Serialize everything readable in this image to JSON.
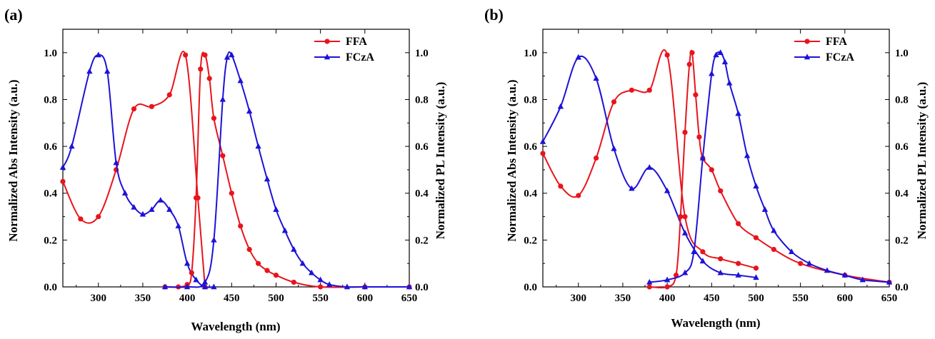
{
  "chart_data": [
    {
      "type": "line",
      "panel_label": "(a)",
      "xlabel": "Wavelength (nm)",
      "ylabel_left": "Normalized Abs Intensity (a.u.)",
      "ylabel_right": "Normalized PL Intensity (a.u.)",
      "xlim": [
        260,
        650
      ],
      "ylim": [
        0,
        1.1
      ],
      "xticks": [
        "300",
        "350",
        "400",
        "450",
        "500",
        "550",
        "600",
        "650"
      ],
      "yticks": [
        "0.0",
        "0.2",
        "0.4",
        "0.6",
        "0.8",
        "1.0"
      ],
      "legend": "top-right",
      "series": [
        {
          "name": "FFA",
          "color": "#e8141c",
          "marker": "circle",
          "axis": "left",
          "x": [
            260,
            280,
            300,
            320,
            340,
            360,
            380,
            398,
            412,
            420
          ],
          "y": [
            0.45,
            0.29,
            0.3,
            0.5,
            0.76,
            0.77,
            0.82,
            0.99,
            0.38,
            0.0
          ]
        },
        {
          "name": "FCzA",
          "color": "#1d12d8",
          "marker": "triangle",
          "axis": "left",
          "x": [
            260,
            270,
            290,
            300,
            310,
            320,
            330,
            340,
            350,
            360,
            370,
            380,
            390,
            400,
            410,
            420,
            430
          ],
          "y": [
            0.51,
            0.6,
            0.92,
            0.99,
            0.92,
            0.53,
            0.4,
            0.34,
            0.31,
            0.33,
            0.37,
            0.33,
            0.26,
            0.1,
            0.03,
            0.0,
            0.0
          ]
        },
        {
          "name": "FFA",
          "color": "#e8141c",
          "marker": "circle",
          "axis": "right",
          "x": [
            375,
            390,
            400,
            405,
            410,
            415,
            420,
            425,
            430,
            440,
            450,
            460,
            470,
            480,
            490,
            500,
            520,
            550,
            600,
            650
          ],
          "y": [
            0.0,
            0.0,
            0.01,
            0.06,
            0.38,
            0.93,
            0.99,
            0.89,
            0.72,
            0.56,
            0.4,
            0.26,
            0.16,
            0.1,
            0.07,
            0.05,
            0.02,
            0.0,
            0.0,
            0.0
          ]
        },
        {
          "name": "FCzA",
          "color": "#1d12d8",
          "marker": "triangle",
          "axis": "right",
          "x": [
            375,
            400,
            420,
            430,
            440,
            445,
            450,
            460,
            470,
            480,
            490,
            500,
            510,
            520,
            530,
            540,
            550,
            560,
            580,
            600,
            650
          ],
          "y": [
            0.0,
            0.0,
            0.02,
            0.2,
            0.8,
            0.98,
            0.99,
            0.88,
            0.75,
            0.6,
            0.46,
            0.33,
            0.24,
            0.16,
            0.1,
            0.06,
            0.03,
            0.01,
            0.0,
            0.0,
            0.0
          ]
        }
      ]
    },
    {
      "type": "line",
      "panel_label": "(b)",
      "xlabel": "Wavelength (nm)",
      "ylabel_left": "Normalized Abs Intensity (a.u.)",
      "ylabel_right": "Normalized PL Intensity (a.u.)",
      "xlim": [
        260,
        650
      ],
      "ylim": [
        0,
        1.1
      ],
      "xticks": [
        "300",
        "350",
        "400",
        "450",
        "500",
        "550",
        "600",
        "650"
      ],
      "yticks": [
        "0.0",
        "0.2",
        "0.4",
        "0.6",
        "0.8",
        "1.0"
      ],
      "legend": "top-right",
      "series": [
        {
          "name": "FFA",
          "color": "#e8141c",
          "marker": "circle",
          "axis": "left",
          "x": [
            260,
            280,
            300,
            320,
            340,
            360,
            380,
            400,
            420,
            440,
            460,
            480,
            500
          ],
          "y": [
            0.57,
            0.43,
            0.39,
            0.55,
            0.79,
            0.84,
            0.84,
            0.99,
            0.3,
            0.15,
            0.12,
            0.1,
            0.08
          ]
        },
        {
          "name": "FCzA",
          "color": "#1d12d8",
          "marker": "triangle",
          "axis": "left",
          "x": [
            260,
            280,
            300,
            320,
            340,
            360,
            380,
            400,
            420,
            440,
            460,
            480,
            500
          ],
          "y": [
            0.62,
            0.77,
            0.98,
            0.89,
            0.59,
            0.42,
            0.51,
            0.41,
            0.23,
            0.11,
            0.06,
            0.05,
            0.04
          ]
        },
        {
          "name": "FFA",
          "color": "#e8141c",
          "marker": "circle",
          "axis": "right",
          "x": [
            380,
            400,
            410,
            415,
            420,
            425,
            428,
            432,
            436,
            440,
            450,
            460,
            480,
            500,
            520,
            550,
            600,
            650
          ],
          "y": [
            0.0,
            0.0,
            0.05,
            0.3,
            0.66,
            0.95,
            1.0,
            0.82,
            0.64,
            0.55,
            0.5,
            0.41,
            0.27,
            0.21,
            0.16,
            0.1,
            0.05,
            0.02
          ]
        },
        {
          "name": "FCzA",
          "color": "#1d12d8",
          "marker": "triangle",
          "axis": "right",
          "x": [
            380,
            400,
            420,
            430,
            440,
            450,
            455,
            460,
            465,
            470,
            480,
            490,
            500,
            510,
            520,
            540,
            560,
            580,
            600,
            620,
            650
          ],
          "y": [
            0.02,
            0.03,
            0.06,
            0.15,
            0.55,
            0.91,
            0.99,
            1.0,
            0.96,
            0.87,
            0.74,
            0.56,
            0.43,
            0.33,
            0.24,
            0.15,
            0.1,
            0.07,
            0.05,
            0.03,
            0.02
          ]
        }
      ]
    }
  ]
}
